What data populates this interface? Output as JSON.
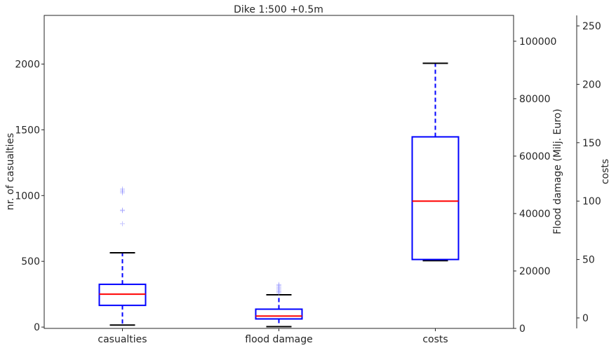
{
  "chart_data": {
    "type": "box",
    "title": "Dike 1:500 +0.5m",
    "categories": [
      "casualties",
      "flood damage",
      "costs"
    ],
    "axes": {
      "left": {
        "label": "nr. of casualties",
        "ylim": [
          -10,
          2370
        ],
        "ticks": [
          0,
          500,
          1000,
          1500,
          2000
        ]
      },
      "right": {
        "label": "Flood damage (Milj. Euro)",
        "ylim": [
          0,
          109000
        ],
        "ticks": [
          0,
          20000,
          40000,
          60000,
          80000,
          100000
        ]
      },
      "far_right": {
        "label": "costs",
        "ylim": [
          -9,
          259
        ],
        "ticks": [
          0,
          50,
          100,
          150,
          200,
          250
        ]
      }
    },
    "boxes": [
      {
        "name": "casualties",
        "axis": "left",
        "whisker_low": 15,
        "q1": 165,
        "median": 250,
        "q3": 325,
        "whisker_high": 565,
        "outliers": [
          785,
          885,
          890,
          1020,
          1030,
          1040,
          1050
        ]
      },
      {
        "name": "flood damage",
        "axis": "right",
        "whisker_low": 600,
        "q1": 3300,
        "median": 4300,
        "q3": 6700,
        "whisker_high": 11700,
        "outliers": [
          12300,
          12700,
          13000,
          13400,
          13800,
          14200,
          14600,
          15000,
          15300
        ]
      },
      {
        "name": "costs",
        "axis": "far_right",
        "whisker_low": 49,
        "q1": 50,
        "median": 100,
        "q3": 155,
        "whisker_high": 218,
        "outliers": []
      }
    ],
    "colors": {
      "box": "#0000ff",
      "median": "#ff0000",
      "cap": "#000000",
      "outlier": "#8080ff"
    },
    "grid": false
  }
}
